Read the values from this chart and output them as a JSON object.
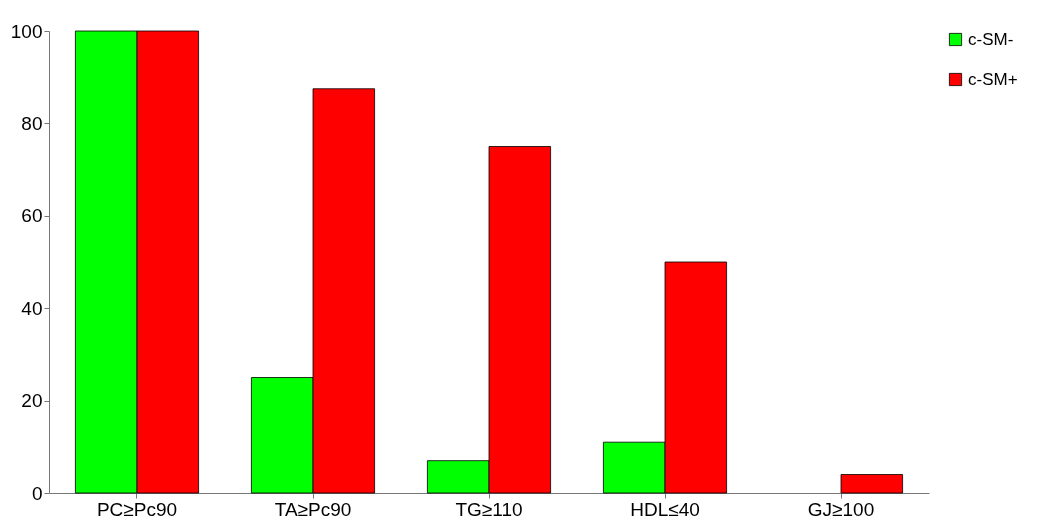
{
  "chart_data": {
    "type": "bar",
    "categories": [
      "PC≥Pc90",
      "TA≥Pc90",
      "TG≥110",
      "HDL≤40",
      "GJ≥100"
    ],
    "series": [
      {
        "name": "c-SM-",
        "color": "#00ff00",
        "values": [
          100,
          25,
          7,
          11,
          0
        ]
      },
      {
        "name": "c-SM+",
        "color": "#ff0000",
        "values": [
          100,
          87.5,
          75,
          50,
          4
        ]
      }
    ],
    "ylim": [
      0,
      100
    ],
    "yticks": [
      0,
      20,
      40,
      60,
      80,
      100
    ],
    "grid": false,
    "legend": "top right"
  }
}
